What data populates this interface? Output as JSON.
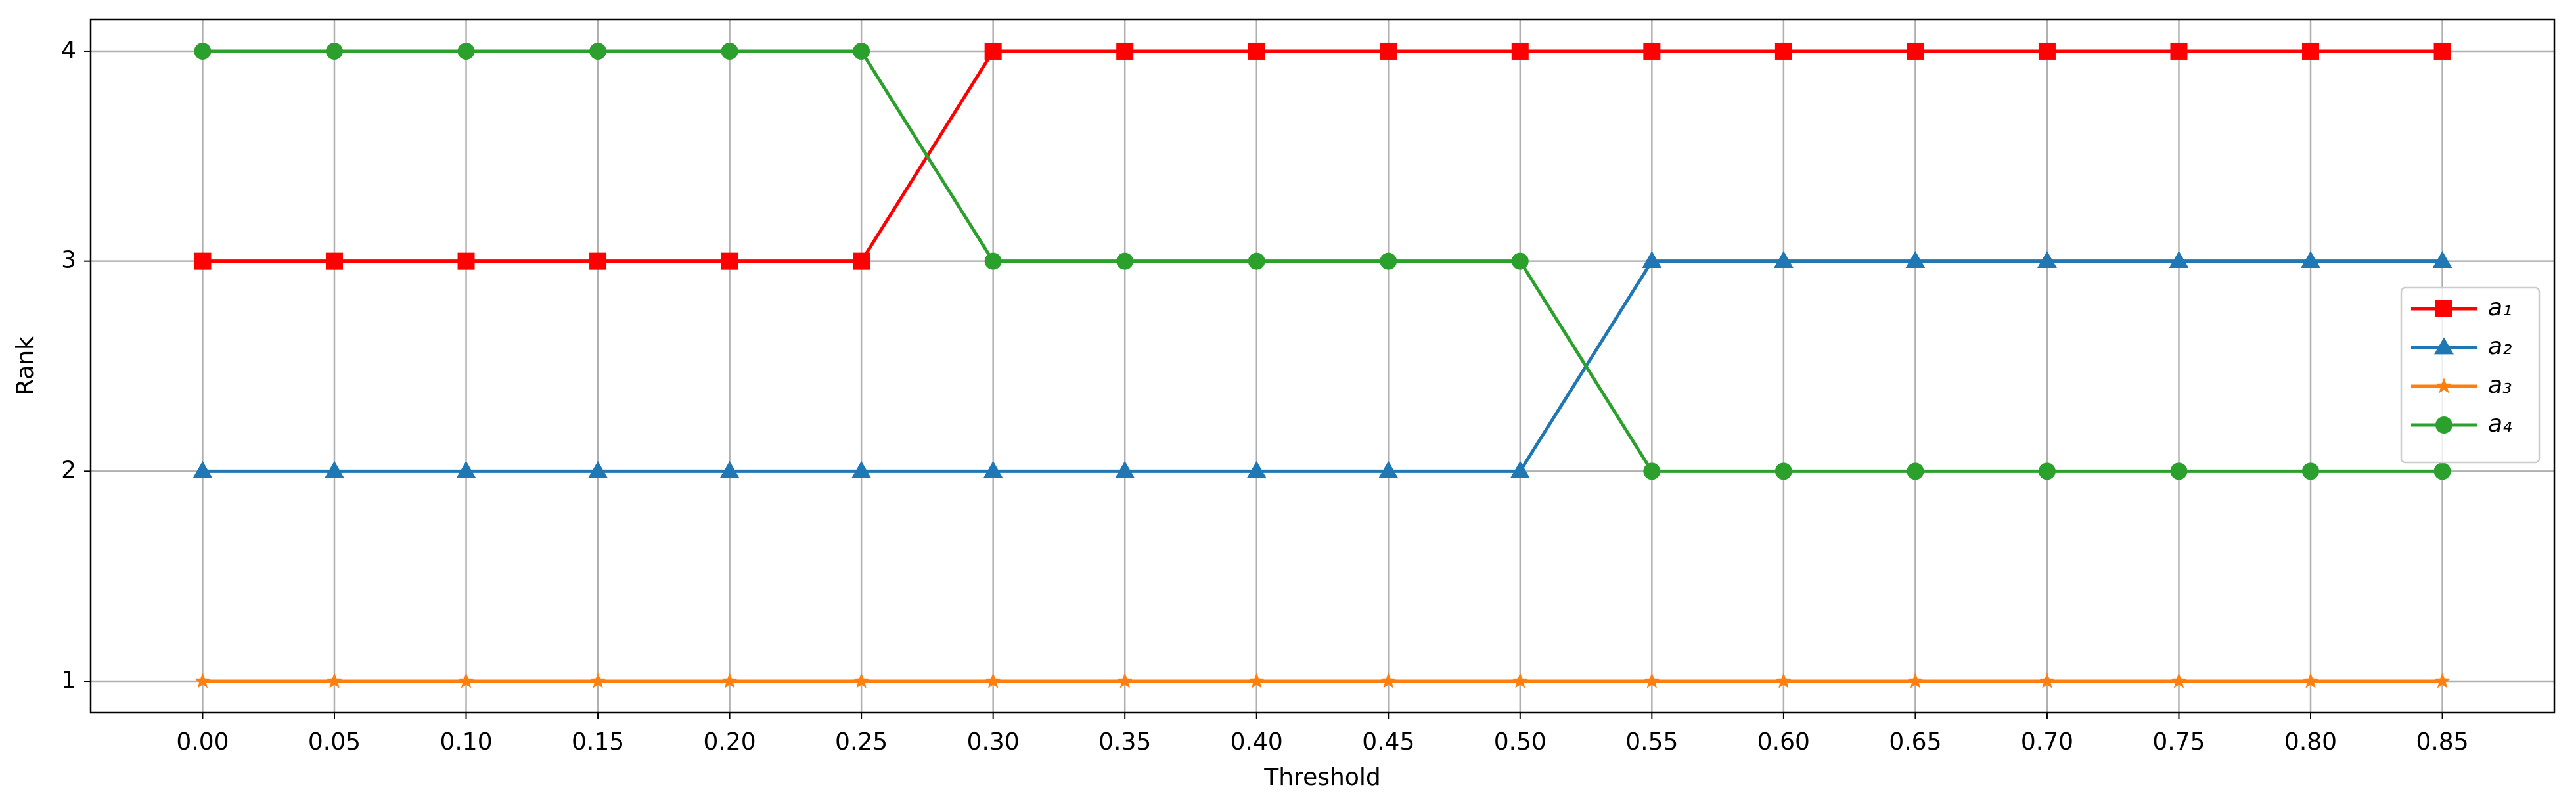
{
  "chart_data": {
    "type": "line",
    "xlabel": "Threshold",
    "ylabel": "Rank",
    "x": [
      0,
      0.05,
      0.1,
      0.15,
      0.2,
      0.25,
      0.3,
      0.35,
      0.4,
      0.45,
      0.5,
      0.55,
      0.6,
      0.65,
      0.7,
      0.75,
      0.8,
      0.85
    ],
    "series": [
      {
        "name": "a₁",
        "color": "#ff0000",
        "marker": "square",
        "values": [
          3,
          3,
          3,
          3,
          3,
          3,
          4,
          4,
          4,
          4,
          4,
          4,
          4,
          4,
          4,
          4,
          4,
          4
        ]
      },
      {
        "name": "a₂",
        "color": "#1f77b4",
        "marker": "triangle",
        "values": [
          2,
          2,
          2,
          2,
          2,
          2,
          2,
          2,
          2,
          2,
          2,
          3,
          3,
          3,
          3,
          3,
          3,
          3
        ]
      },
      {
        "name": "a₃",
        "color": "#ff7f0e",
        "marker": "star",
        "values": [
          1,
          1,
          1,
          1,
          1,
          1,
          1,
          1,
          1,
          1,
          1,
          1,
          1,
          1,
          1,
          1,
          1,
          1
        ]
      },
      {
        "name": "a₄",
        "color": "#2ca02c",
        "marker": "circle",
        "values": [
          4,
          4,
          4,
          4,
          4,
          4,
          3,
          3,
          3,
          3,
          3,
          2,
          2,
          2,
          2,
          2,
          2,
          2
        ]
      }
    ],
    "xlim": [
      -0.0425,
      0.8925
    ],
    "xticks": [
      {
        "value": 0,
        "label": "0.00"
      },
      {
        "value": 0.05,
        "label": "0.05"
      },
      {
        "value": 0.1,
        "label": "0.10"
      },
      {
        "value": 0.15,
        "label": "0.15"
      },
      {
        "value": 0.2,
        "label": "0.20"
      },
      {
        "value": 0.25,
        "label": "0.25"
      },
      {
        "value": 0.3,
        "label": "0.30"
      },
      {
        "value": 0.35,
        "label": "0.35"
      },
      {
        "value": 0.4,
        "label": "0.40"
      },
      {
        "value": 0.45,
        "label": "0.45"
      },
      {
        "value": 0.5,
        "label": "0.50"
      },
      {
        "value": 0.55,
        "label": "0.55"
      },
      {
        "value": 0.6,
        "label": "0.60"
      },
      {
        "value": 0.65,
        "label": "0.65"
      },
      {
        "value": 0.7,
        "label": "0.70"
      },
      {
        "value": 0.75,
        "label": "0.75"
      },
      {
        "value": 0.8,
        "label": "0.80"
      },
      {
        "value": 0.85,
        "label": "0.85"
      }
    ],
    "ylim": [
      0.85,
      4.15
    ],
    "yticks": [
      1,
      2,
      3,
      4
    ],
    "grid": true,
    "legend": "right"
  }
}
